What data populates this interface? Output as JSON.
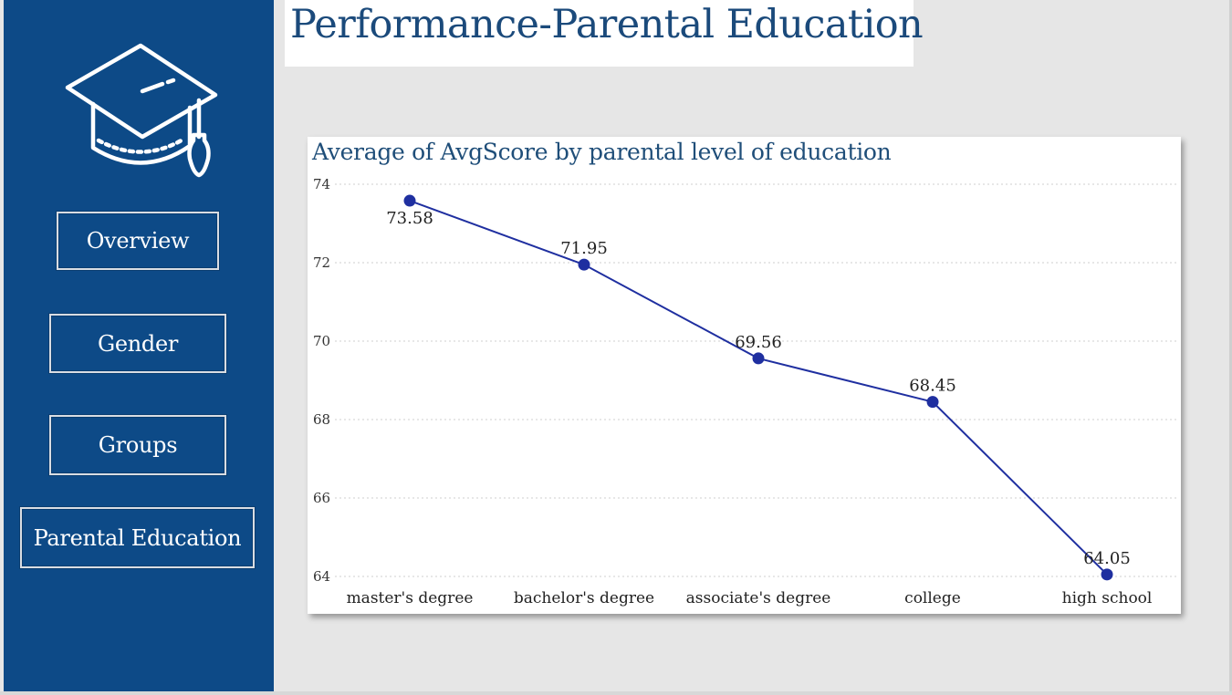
{
  "sidebar": {
    "logo_icon": "graduation-cap-icon",
    "nav": [
      {
        "id": "overview",
        "label": "Overview"
      },
      {
        "id": "gender",
        "label": "Gender"
      },
      {
        "id": "groups",
        "label": "Groups"
      },
      {
        "id": "parental-education",
        "label": "Parental Education"
      }
    ]
  },
  "header": {
    "title": "Performance-Parental Education"
  },
  "colors": {
    "sidebar": "#0d4a87",
    "line": "#1f2fa0",
    "title": "#1b4a7b"
  },
  "chart_data": {
    "type": "line",
    "title": "Average of AvgScore by parental level of education",
    "categories": [
      "master's degree",
      "bachelor's degree",
      "associate's degree",
      "college",
      "high school"
    ],
    "series": [
      {
        "values": [
          73.58,
          71.95,
          69.56,
          68.45,
          64.05
        ]
      }
    ],
    "data_labels": [
      "73.58",
      "71.95",
      "69.56",
      "68.45",
      "64.05"
    ],
    "yticks": [
      "64",
      "66",
      "68",
      "70",
      "72",
      "74"
    ],
    "ylim": [
      64,
      74
    ],
    "grid": true,
    "xlabel": "",
    "ylabel": ""
  }
}
